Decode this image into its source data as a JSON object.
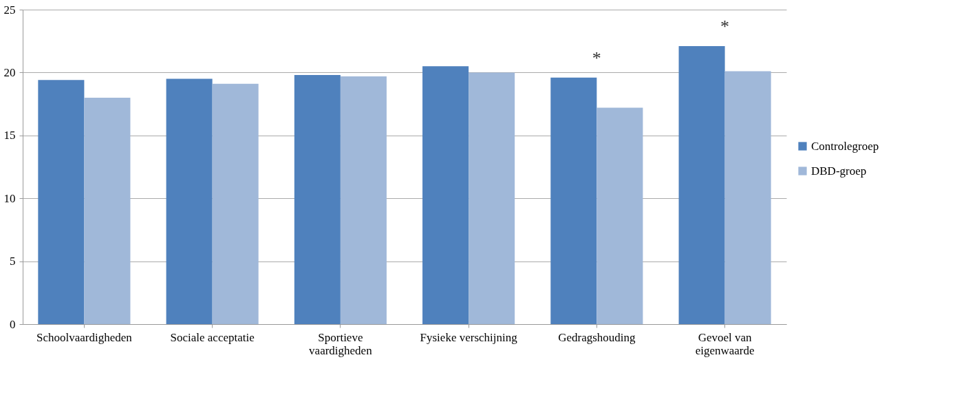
{
  "chart_data": {
    "type": "bar",
    "categories": [
      "Schoolvaardigheden",
      "Sociale acceptatie",
      "Sportieve vaardigheden",
      "Fysieke verschijning",
      "Gedragshouding",
      "Gevoel van eigenwaarde"
    ],
    "series": [
      {
        "name": "Controlegroep",
        "color": "#4f81bd",
        "values": [
          19.4,
          19.5,
          19.8,
          20.5,
          19.6,
          22.1
        ]
      },
      {
        "name": "DBD-groep",
        "color": "#a0b8d9",
        "values": [
          18.0,
          19.1,
          19.7,
          20.0,
          17.2,
          20.1
        ]
      }
    ],
    "ylim": [
      0,
      25
    ],
    "yticks": [
      0,
      5,
      10,
      15,
      20,
      25
    ],
    "grid": "y",
    "legend": "right",
    "annotations": [
      {
        "text": "*",
        "x": "Gedragshouding",
        "y": 19.6
      },
      {
        "text": "*",
        "x": "Gevoel van eigenwaarde",
        "y": 22.1
      }
    ]
  }
}
